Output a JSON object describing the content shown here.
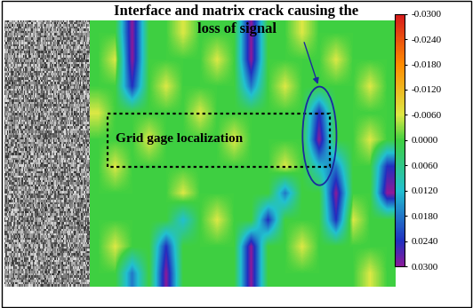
{
  "chart_data": {
    "type": "heatmap",
    "title": "Interface and matrix crack causing the loss of signal",
    "annotations": [
      "Grid gage localization"
    ],
    "tick_labels": false,
    "cells": [
      [
        0,
        0,
        0.03,
        0,
        0,
        -0.006,
        0,
        0,
        0,
        0.03,
        0,
        0,
        -0.006,
        0,
        0,
        0,
        0,
        0
      ],
      [
        0,
        -0.006,
        0.03,
        0,
        0,
        0,
        0,
        -0.006,
        0,
        0.03,
        0,
        0,
        0,
        0,
        -0.006,
        0,
        0,
        0
      ],
      [
        0,
        0,
        0.024,
        0,
        -0.006,
        0,
        0,
        0,
        0,
        0.018,
        0,
        -0.006,
        0,
        0,
        0,
        0,
        -0.006,
        0
      ],
      [
        -0.006,
        0,
        0,
        0,
        0,
        0,
        -0.006,
        0,
        0,
        0,
        0,
        0,
        0,
        0.024,
        0,
        0,
        0,
        0
      ],
      [
        0,
        0,
        0,
        -0.006,
        0,
        0,
        0,
        0,
        -0.006,
        0,
        0,
        0,
        0,
        0.03,
        0,
        0,
        -0.006,
        0
      ],
      [
        0,
        -0.006,
        0,
        0,
        0,
        0,
        0,
        0,
        0,
        0,
        0,
        -0.006,
        0,
        0.012,
        0.018,
        0,
        0,
        0.024
      ],
      [
        0,
        0,
        0,
        0,
        0,
        -0.006,
        0,
        0,
        0,
        0,
        0,
        0.018,
        0,
        0,
        0.03,
        0,
        0,
        0.03
      ],
      [
        0,
        0,
        0,
        0,
        0,
        0.012,
        0,
        -0.006,
        0,
        0,
        0.024,
        0,
        0,
        0,
        0.024,
        -0.006,
        0,
        0
      ],
      [
        0,
        -0.006,
        0,
        0,
        0.024,
        0,
        0,
        0,
        0,
        0.03,
        0,
        0,
        -0.006,
        0,
        0,
        0,
        0,
        0
      ],
      [
        0,
        0,
        0.018,
        0,
        0.03,
        0,
        0,
        0,
        0,
        0.03,
        0,
        0,
        0,
        0,
        0,
        0,
        -0.006,
        0
      ]
    ],
    "colorbar": {
      "range": [
        -0.03,
        0.03
      ],
      "ticks": [
        {
          "value": -0.03,
          "label": "-0.0300"
        },
        {
          "value": -0.024,
          "label": "-0.0240"
        },
        {
          "value": -0.018,
          "label": "-0.0180"
        },
        {
          "value": -0.012,
          "label": "-0.0120"
        },
        {
          "value": -0.006,
          "label": "-0.0060"
        },
        {
          "value": 0,
          "label": "0.0000"
        },
        {
          "value": 0.006,
          "label": "0.0060"
        },
        {
          "value": 0.012,
          "label": "0.0120"
        },
        {
          "value": 0.018,
          "label": "0.0180"
        },
        {
          "value": 0.024,
          "label": "0.0240"
        },
        {
          "value": 0.03,
          "label": "0.0300"
        }
      ]
    }
  }
}
